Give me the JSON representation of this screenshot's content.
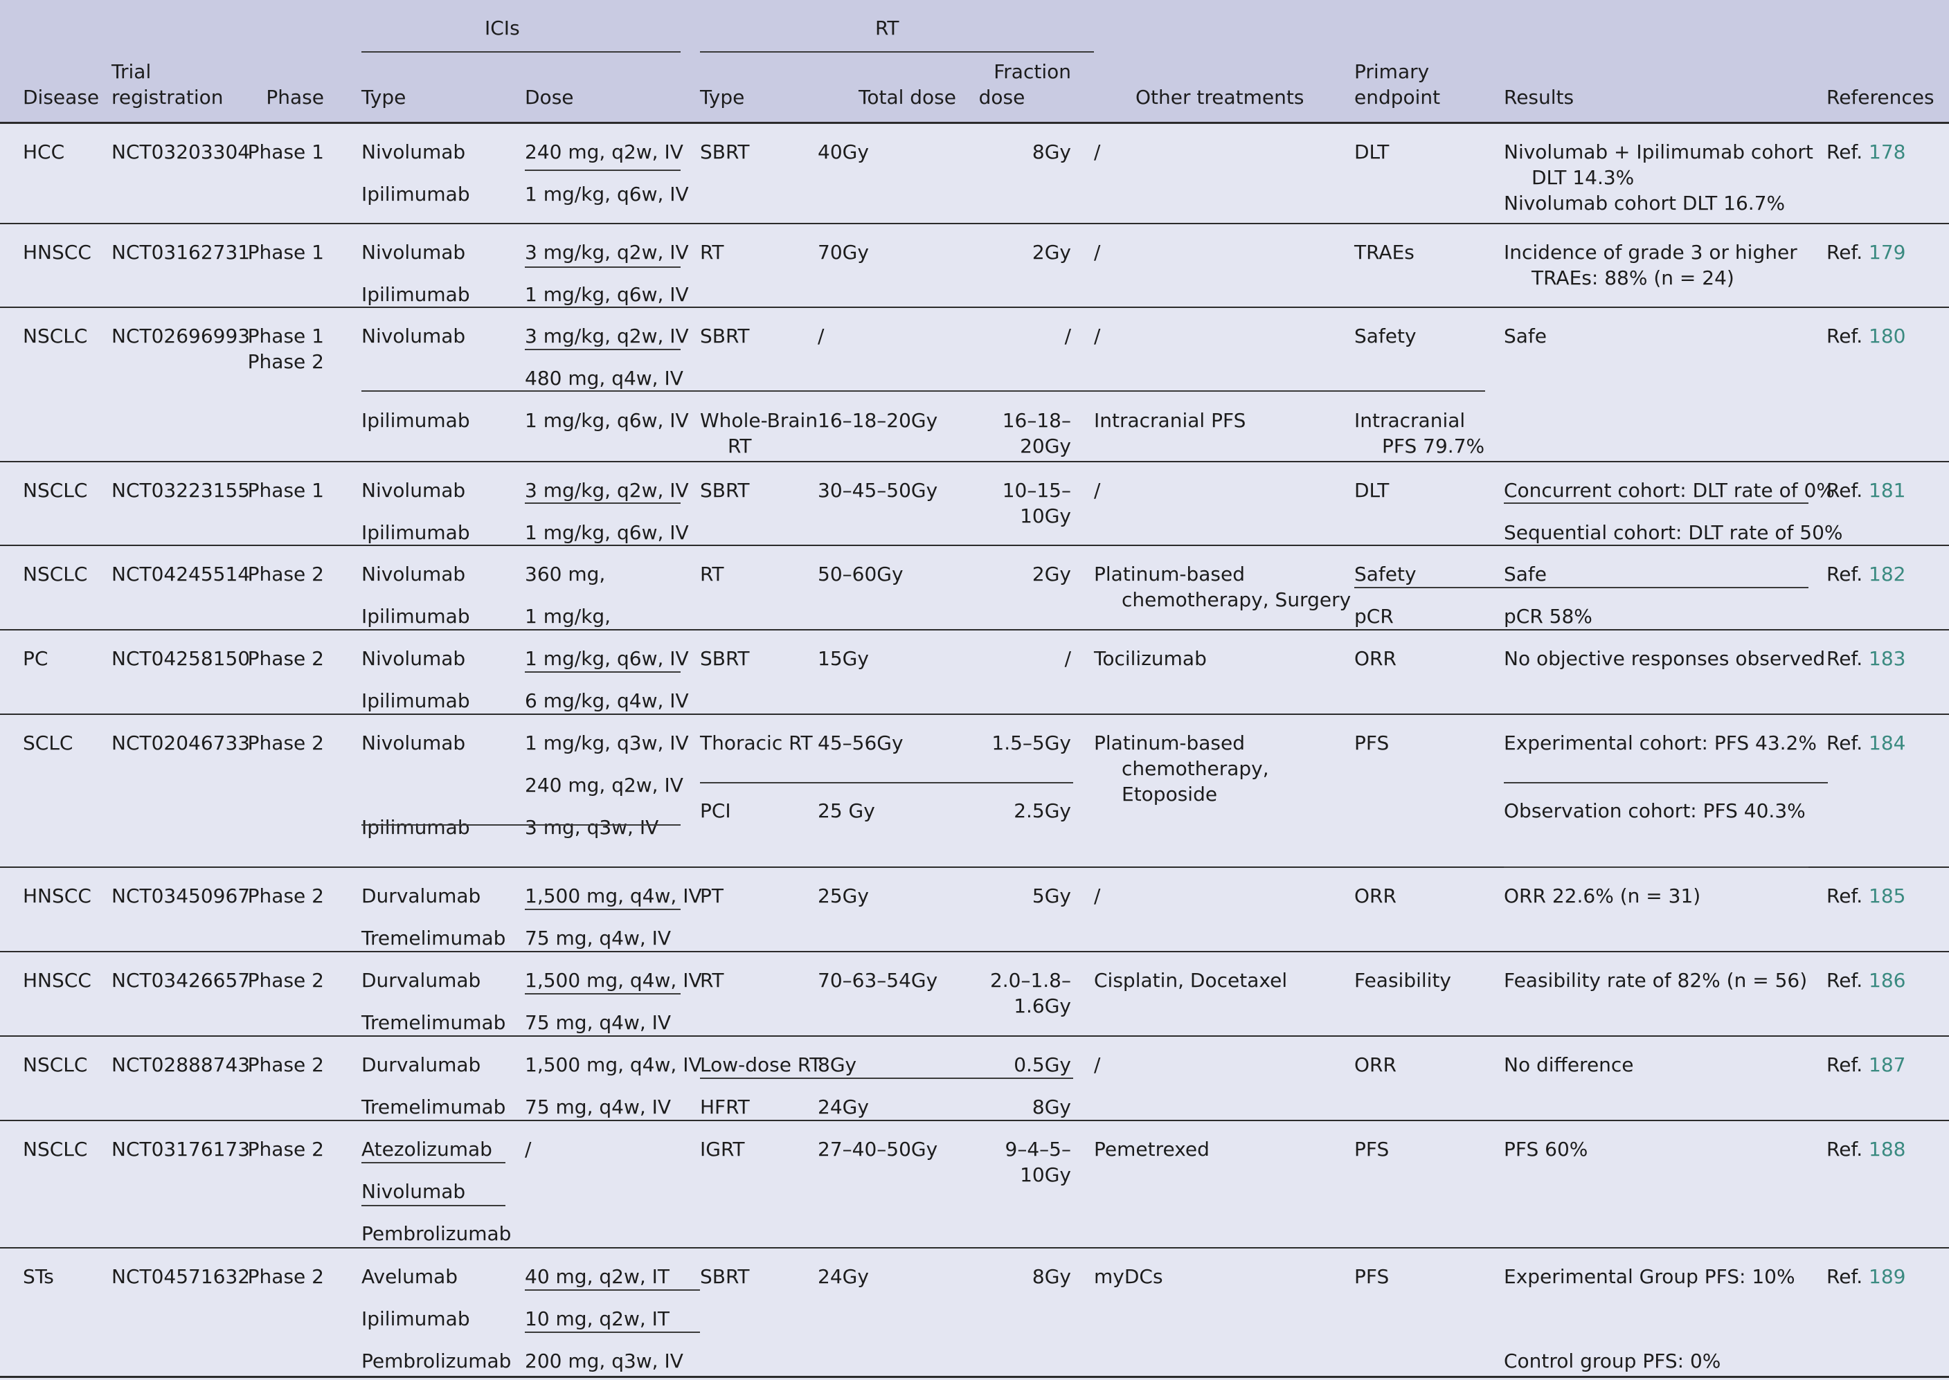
{
  "header": {
    "group_icis": "ICIs",
    "group_rt": "RT",
    "col_disease": "Disease",
    "col_trial": [
      "Trial",
      "registration"
    ],
    "col_phase": "Phase",
    "col_ici_type": "Type",
    "col_ici_dose": "Dose",
    "col_rt_type": "Type",
    "col_total_dose": "Total dose",
    "col_fraction_dose": [
      "Fraction",
      "dose"
    ],
    "col_other": "Other treatments",
    "col_endpoint": [
      "Primary",
      "endpoint"
    ],
    "col_results": "Results",
    "col_references": "References"
  },
  "rows": [
    {
      "disease": "HCC",
      "trial": "NCT03203304",
      "phase": [
        "Phase 1"
      ],
      "icis": [
        {
          "type": "Nivolumab",
          "dose": "240 mg, q2w, IV"
        },
        {
          "type": "Ipilimumab",
          "dose": "1 mg/kg, q6w, IV"
        }
      ],
      "rt": [
        {
          "type": [
            "SBRT"
          ],
          "total": [
            "40Gy"
          ],
          "fraction": [
            "8Gy"
          ]
        }
      ],
      "other": [
        "/"
      ],
      "endpoint": [
        [
          "DLT"
        ]
      ],
      "results": [
        [
          "Nivolumab + Ipilimumab cohort",
          "DLT 14.3%"
        ],
        [
          "Nivolumab cohort DLT 16.7%"
        ]
      ],
      "ref_prefix": "Ref. ",
      "ref_num": "178"
    },
    {
      "disease": "HNSCC",
      "trial": "NCT03162731",
      "phase": [
        "Phase 1"
      ],
      "icis": [
        {
          "type": "Nivolumab",
          "dose": "3 mg/kg, q2w, IV"
        },
        {
          "type": "Ipilimumab",
          "dose": "1 mg/kg, q6w, IV"
        }
      ],
      "rt": [
        {
          "type": [
            "RT"
          ],
          "total": [
            "70Gy"
          ],
          "fraction": [
            "2Gy"
          ]
        }
      ],
      "other": [
        "/"
      ],
      "endpoint": [
        [
          "TRAEs"
        ]
      ],
      "results": [
        [
          "Incidence of grade 3 or higher",
          "TRAEs: 88% (n = 24)"
        ]
      ],
      "ref_prefix": "Ref. ",
      "ref_num": "179"
    },
    {
      "disease": "NSCLC",
      "trial": "NCT02696993",
      "phase": [
        "Phase 1",
        "Phase 2"
      ],
      "icis": [
        {
          "type": "Nivolumab",
          "dose": "3 mg/kg, q2w, IV"
        },
        {
          "type": "",
          "dose": "480 mg, q4w, IV"
        },
        {
          "type": "Ipilimumab",
          "dose": "1 mg/kg, q6w, IV"
        }
      ],
      "rt": [
        {
          "type": [
            "SBRT"
          ],
          "total": [
            "/"
          ],
          "fraction": [
            "/"
          ]
        },
        {
          "type": [
            "Whole-Brain",
            "RT"
          ],
          "total": [
            "16–18–20Gy"
          ],
          "fraction": [
            "16–18–",
            "20Gy"
          ]
        }
      ],
      "other": [
        "/"
      ],
      "other_b": [
        "Intracranial PFS"
      ],
      "endpoint": [
        [
          "Safety"
        ],
        [
          "Intracranial",
          "PFS 79.7%"
        ]
      ],
      "results": [
        [
          "Safe"
        ]
      ],
      "ref_prefix": "Ref. ",
      "ref_num": "180"
    },
    {
      "disease": "NSCLC",
      "trial": "NCT03223155",
      "phase": [
        "Phase 1"
      ],
      "icis": [
        {
          "type": "Nivolumab",
          "dose": "3 mg/kg, q2w, IV"
        },
        {
          "type": "Ipilimumab",
          "dose": "1 mg/kg, q6w, IV"
        }
      ],
      "rt": [
        {
          "type": [
            "SBRT"
          ],
          "total": [
            "30–45–50Gy"
          ],
          "fraction": [
            "10–15–",
            "10Gy"
          ]
        }
      ],
      "other": [
        "/"
      ],
      "endpoint": [
        [
          "DLT"
        ]
      ],
      "results": [
        [
          "Concurrent cohort: DLT rate of 0%"
        ],
        [
          "Sequential cohort: DLT rate of 50%"
        ]
      ],
      "ref_prefix": "Ref. ",
      "ref_num": "181"
    },
    {
      "disease": "NSCLC",
      "trial": "NCT04245514",
      "phase": [
        "Phase 2"
      ],
      "icis": [
        {
          "type": "Nivolumab",
          "dose": "360 mg,"
        },
        {
          "type": "Ipilimumab",
          "dose": "1 mg/kg,"
        }
      ],
      "rt": [
        {
          "type": [
            "RT"
          ],
          "total": [
            "50–60Gy"
          ],
          "fraction": [
            "2Gy"
          ]
        }
      ],
      "other": [
        "Platinum-based",
        "chemotherapy, Surgery"
      ],
      "endpoint": [
        [
          "Safety"
        ],
        [
          "pCR"
        ]
      ],
      "results": [
        [
          "Safe"
        ],
        [
          "pCR 58%"
        ]
      ],
      "ref_prefix": "Ref. ",
      "ref_num": "182"
    },
    {
      "disease": "PC",
      "trial": "NCT04258150",
      "phase": [
        "Phase 2"
      ],
      "icis": [
        {
          "type": "Nivolumab",
          "dose": "1 mg/kg, q6w, IV"
        },
        {
          "type": "Ipilimumab",
          "dose": "6 mg/kg, q4w, IV"
        }
      ],
      "rt": [
        {
          "type": [
            "SBRT"
          ],
          "total": [
            "15Gy"
          ],
          "fraction": [
            "/"
          ]
        }
      ],
      "other": [
        "Tocilizumab"
      ],
      "endpoint": [
        [
          "ORR"
        ]
      ],
      "results": [
        [
          "No objective responses observed"
        ]
      ],
      "ref_prefix": "Ref. ",
      "ref_num": "183"
    },
    {
      "disease": "SCLC",
      "trial": "NCT02046733",
      "phase": [
        "Phase 2"
      ],
      "icis": [
        {
          "type": "Nivolumab",
          "dose": "1 mg/kg, q3w, IV"
        },
        {
          "type": "",
          "dose": "240 mg, q2w, IV"
        },
        {
          "type": "Ipilimumab",
          "dose": "3 mg, q3w, IV"
        }
      ],
      "rt": [
        {
          "type": [
            "Thoracic RT"
          ],
          "total": [
            "45–56Gy"
          ],
          "fraction": [
            "1.5–5Gy"
          ]
        },
        {
          "type": [
            "PCI"
          ],
          "total": [
            "25 Gy"
          ],
          "fraction": [
            "2.5Gy"
          ]
        }
      ],
      "other": [
        "Platinum-based",
        "chemotherapy,",
        "Etoposide"
      ],
      "endpoint": [
        [
          "PFS"
        ]
      ],
      "results": [
        [
          "Experimental cohort: PFS 43.2%"
        ],
        [
          "Observation cohort: PFS 40.3%"
        ]
      ],
      "ref_prefix": "Ref. ",
      "ref_num": "184"
    },
    {
      "disease": "HNSCC",
      "trial": "NCT03450967",
      "phase": [
        "Phase 2"
      ],
      "icis": [
        {
          "type": "Durvalumab",
          "dose": "1,500 mg, q4w, IV"
        },
        {
          "type": "Tremelimumab",
          "dose": "75 mg, q4w, IV"
        }
      ],
      "rt": [
        {
          "type": [
            "PT"
          ],
          "total": [
            "25Gy"
          ],
          "fraction": [
            "5Gy"
          ]
        }
      ],
      "other": [
        "/"
      ],
      "endpoint": [
        [
          "ORR"
        ]
      ],
      "results": [
        [
          "ORR 22.6% (n = 31)"
        ]
      ],
      "ref_prefix": "Ref. ",
      "ref_num": "185"
    },
    {
      "disease": "HNSCC",
      "trial": "NCT03426657",
      "phase": [
        "Phase 2"
      ],
      "icis": [
        {
          "type": "Durvalumab",
          "dose": "1,500 mg, q4w, IV"
        },
        {
          "type": "Tremelimumab",
          "dose": "75 mg, q4w, IV"
        }
      ],
      "rt": [
        {
          "type": [
            "RT"
          ],
          "total": [
            "70–63–54Gy"
          ],
          "fraction": [
            "2.0–1.8–",
            "1.6Gy"
          ]
        }
      ],
      "other": [
        "Cisplatin, Docetaxel"
      ],
      "endpoint": [
        [
          "Feasibility"
        ]
      ],
      "results": [
        [
          "Feasibility rate of 82% (n = 56)"
        ]
      ],
      "ref_prefix": "Ref. ",
      "ref_num": "186"
    },
    {
      "disease": "NSCLC",
      "trial": "NCT02888743",
      "phase": [
        "Phase 2"
      ],
      "icis": [
        {
          "type": "Durvalumab",
          "dose": "1,500 mg, q4w, IV"
        },
        {
          "type": "Tremelimumab",
          "dose": "75 mg, q4w, IV"
        }
      ],
      "rt": [
        {
          "type": [
            "Low-dose RT"
          ],
          "total": [
            "8Gy"
          ],
          "fraction": [
            "0.5Gy"
          ]
        },
        {
          "type": [
            "HFRT"
          ],
          "total": [
            "24Gy"
          ],
          "fraction": [
            "8Gy"
          ]
        }
      ],
      "other": [
        "/"
      ],
      "endpoint": [
        [
          "ORR"
        ]
      ],
      "results": [
        [
          "No difference"
        ]
      ],
      "ref_prefix": "Ref. ",
      "ref_num": "187"
    },
    {
      "disease": "NSCLC",
      "trial": "NCT03176173",
      "phase": [
        "Phase 2"
      ],
      "icis": [
        {
          "type": "Atezolizumab",
          "dose": "/"
        },
        {
          "type": "Nivolumab",
          "dose": ""
        },
        {
          "type": "Pembrolizumab",
          "dose": ""
        }
      ],
      "rt": [
        {
          "type": [
            "IGRT"
          ],
          "total": [
            "27–40–50Gy"
          ],
          "fraction": [
            "9–4–5–",
            "10Gy"
          ]
        }
      ],
      "other": [
        "Pemetrexed"
      ],
      "endpoint": [
        [
          "PFS"
        ]
      ],
      "results": [
        [
          "PFS 60%"
        ]
      ],
      "ref_prefix": "Ref. ",
      "ref_num": "188"
    },
    {
      "disease": "STs",
      "trial": "NCT04571632",
      "phase": [
        "Phase 2"
      ],
      "icis": [
        {
          "type": "Avelumab",
          "dose": "40 mg, q2w, IT"
        },
        {
          "type": "Ipilimumab",
          "dose": "10 mg, q2w, IT"
        },
        {
          "type": "Pembrolizumab",
          "dose": "200 mg, q3w, IV"
        }
      ],
      "rt": [
        {
          "type": [
            "SBRT"
          ],
          "total": [
            "24Gy"
          ],
          "fraction": [
            "8Gy"
          ]
        }
      ],
      "other": [
        "myDCs"
      ],
      "endpoint": [
        [
          "PFS"
        ]
      ],
      "results": [
        [
          "Experimental Group PFS: 10%"
        ],
        [
          "Control group PFS: 0%"
        ]
      ],
      "ref_prefix": "Ref. ",
      "ref_num": "189"
    }
  ],
  "colors": {
    "header_bg": "#c9cbe2",
    "body_bg": "#e4e6f2",
    "ref_link": "#3a8a80",
    "rule": "#2b2b2b"
  }
}
